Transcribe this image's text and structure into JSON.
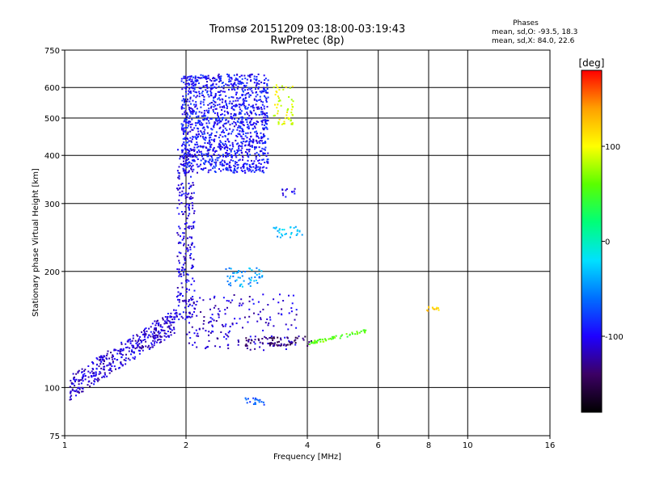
{
  "chart_data": {
    "type": "scatter",
    "title": "Tromsø 20151209 03:18:00-03:19:43",
    "subtitle": "RwPretec (8p)",
    "xlabel": "Frequency [MHz]",
    "ylabel": "Stationary phase Virtual Height [km]",
    "x_scale": "log",
    "y_scale": "log",
    "xlim": [
      1,
      16
    ],
    "ylim": [
      75,
      750
    ],
    "x_ticks": [
      1,
      2,
      4,
      6,
      8,
      10,
      16
    ],
    "y_ticks": [
      75,
      100,
      200,
      300,
      400,
      500,
      600,
      750
    ],
    "grid": true,
    "stats_header": "Phases",
    "stats_lines": [
      "mean, sd,O: -93.5, 18.3",
      "mean, sd,X: 84.0, 22.6"
    ],
    "colorbar": {
      "label": "[deg]",
      "range": [
        -180,
        180
      ],
      "ticks": [
        100,
        0,
        -100
      ],
      "colors": [
        "#000000",
        "#3c0064",
        "#1e00ff",
        "#006eff",
        "#00e1ff",
        "#00ff78",
        "#5aff00",
        "#ffff00",
        "#ffa000",
        "#ff0000"
      ]
    },
    "clusters": [
      {
        "name": "low_trace_O",
        "x_range": [
          1.03,
          1.9
        ],
        "y_range": [
          100,
          150
        ],
        "phase": -110,
        "count": 420
      },
      {
        "name": "vertical_trace",
        "x_range": [
          1.9,
          2.1
        ],
        "y_range": [
          150,
          420
        ],
        "phase": -105,
        "count": 260
      },
      {
        "name": "F_cloud",
        "x_range": [
          1.95,
          3.2
        ],
        "y_range": [
          360,
          650
        ],
        "phase": -95,
        "count": 1300
      },
      {
        "name": "X_mode_cap",
        "x_range": [
          3.3,
          3.7
        ],
        "y_range": [
          480,
          610
        ],
        "phase": 95,
        "count": 60
      },
      {
        "name": "mid_band_190",
        "x_range": [
          2.5,
          3.1
        ],
        "y_range": [
          182,
          205
        ],
        "phase": -45,
        "count": 55
      },
      {
        "name": "scatter_150",
        "x_range": [
          2.0,
          3.8
        ],
        "y_range": [
          125,
          175
        ],
        "phase": -110,
        "count": 180
      },
      {
        "name": "band_132",
        "x_range": [
          2.8,
          4.1
        ],
        "y_range": [
          128,
          136
        ],
        "phase": -140,
        "count": 70
      },
      {
        "name": "band_rising",
        "x_range": [
          4.0,
          5.6
        ],
        "y_range": [
          130,
          140
        ],
        "phase": 60,
        "count": 55
      },
      {
        "name": "cluster_255",
        "x_range": [
          3.3,
          3.9
        ],
        "y_range": [
          245,
          262
        ],
        "phase": -35,
        "count": 30
      },
      {
        "name": "cluster_320",
        "x_range": [
          3.4,
          3.8
        ],
        "y_range": [
          312,
          328
        ],
        "phase": -100,
        "count": 12
      },
      {
        "name": "cluster_92",
        "x_range": [
          2.8,
          3.2
        ],
        "y_range": [
          90,
          94
        ],
        "phase": -70,
        "count": 18
      },
      {
        "name": "spot_8mhz",
        "x_range": [
          7.8,
          8.7
        ],
        "y_range": [
          158,
          162
        ],
        "phase": 120,
        "count": 14
      }
    ]
  }
}
